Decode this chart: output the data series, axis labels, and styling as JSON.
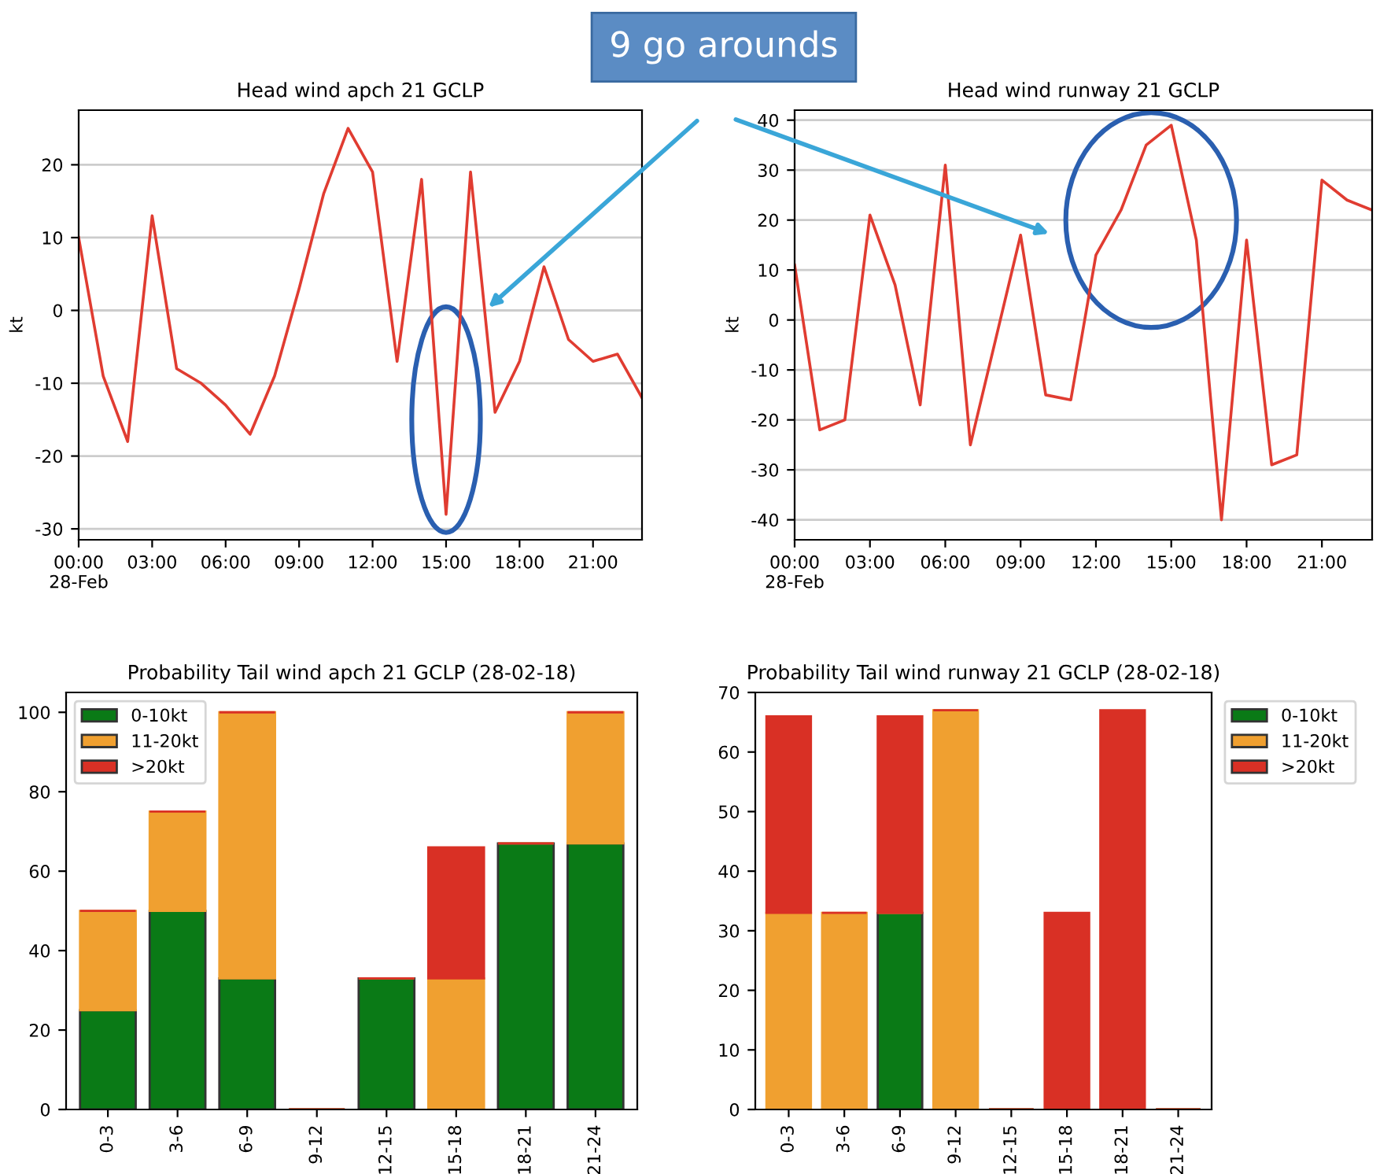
{
  "chart_data": [
    {
      "type": "line",
      "title": "Head wind apch 21 GCLP",
      "ylabel": "kt",
      "annotations": [
        "9 go arounds"
      ],
      "grid": "y",
      "xlim": [
        0,
        23
      ],
      "ylim": [
        -31.5,
        27.5
      ],
      "xticks": [
        {
          "value": 0,
          "label": "00:00\n28-Feb"
        },
        {
          "value": 3,
          "label": "03:00"
        },
        {
          "value": 6,
          "label": "06:00"
        },
        {
          "value": 9,
          "label": "09:00"
        },
        {
          "value": 12,
          "label": "12:00"
        },
        {
          "value": 15,
          "label": "15:00"
        },
        {
          "value": 18,
          "label": "18:00"
        },
        {
          "value": 21,
          "label": "21:00"
        }
      ],
      "yticks": [
        -30,
        -20,
        -10,
        0,
        10,
        20
      ],
      "x": [
        0,
        1,
        2,
        3,
        4,
        5,
        6,
        7,
        8,
        9,
        10,
        11,
        12,
        13,
        14,
        15,
        16,
        17,
        18,
        19,
        20,
        21,
        22,
        23
      ],
      "series": [
        {
          "color": "#e03c31",
          "values": [
            10,
            -9,
            -18,
            13,
            -8,
            -10,
            -13,
            -17,
            -9,
            3,
            16,
            25,
            19,
            -7,
            18,
            -28,
            19,
            -14,
            -7,
            6,
            -4,
            -7,
            -6,
            -12
          ]
        }
      ]
    },
    {
      "type": "line",
      "title": "Head wind runway 21 GCLP",
      "ylabel": "kt",
      "grid": "y",
      "xlim": [
        0,
        23
      ],
      "ylim": [
        -44,
        42
      ],
      "xticks": [
        {
          "value": 0,
          "label": "00:00\n28-Feb"
        },
        {
          "value": 3,
          "label": "03:00"
        },
        {
          "value": 6,
          "label": "06:00"
        },
        {
          "value": 9,
          "label": "09:00"
        },
        {
          "value": 12,
          "label": "12:00"
        },
        {
          "value": 15,
          "label": "15:00"
        },
        {
          "value": 18,
          "label": "18:00"
        },
        {
          "value": 21,
          "label": "21:00"
        }
      ],
      "yticks": [
        -40,
        -30,
        -20,
        -10,
        0,
        10,
        20,
        30,
        40
      ],
      "x": [
        0,
        1,
        2,
        3,
        4,
        5,
        6,
        7,
        8,
        9,
        10,
        11,
        12,
        13,
        14,
        15,
        16,
        17,
        18,
        19,
        20,
        21,
        22,
        23
      ],
      "series": [
        {
          "color": "#e03c31",
          "values": [
            11,
            -22,
            -20,
            21,
            7,
            -17,
            31,
            -25,
            -4,
            17,
            -15,
            -16,
            13,
            22,
            35,
            39,
            16,
            -40,
            16,
            -29,
            -27,
            28,
            24,
            22
          ]
        }
      ]
    },
    {
      "type": "bar",
      "stacked": true,
      "title": "Probability Tail wind apch 21 GCLP (28-02-18)",
      "legend": "top left",
      "ylim": [
        0,
        105
      ],
      "yticks": [
        0,
        20,
        40,
        60,
        80,
        100
      ],
      "categories": [
        "0-3",
        "3-6",
        "6-9",
        "9-12",
        "12-15",
        "15-18",
        "18-21",
        "21-24"
      ],
      "series": [
        {
          "name": "0-10kt",
          "color": "#0a7a16",
          "values": [
            25,
            50,
            33,
            0,
            33,
            0,
            67,
            67
          ]
        },
        {
          "name": "11-20kt",
          "color": "#f0a030",
          "values": [
            25,
            25,
            67,
            0,
            0,
            33,
            0,
            33
          ]
        },
        {
          "name": ">20kt",
          "color": "#d93025",
          "values": [
            0,
            0,
            0,
            0,
            0,
            33,
            0,
            0
          ]
        }
      ]
    },
    {
      "type": "bar",
      "stacked": true,
      "title": "Probability Tail wind runway 21 GCLP (28-02-18)",
      "legend": "top right",
      "ylim": [
        0,
        70
      ],
      "yticks": [
        0,
        10,
        20,
        30,
        40,
        50,
        60,
        70
      ],
      "categories": [
        "0-3",
        "3-6",
        "6-9",
        "9-12",
        "12-15",
        "15-18",
        "18-21",
        "21-24"
      ],
      "series": [
        {
          "name": "0-10kt",
          "color": "#0a7a16",
          "values": [
            0,
            0,
            33,
            0,
            0,
            0,
            0,
            0
          ]
        },
        {
          "name": "11-20kt",
          "color": "#f0a030",
          "values": [
            33,
            33,
            0,
            67,
            0,
            0,
            0,
            0
          ]
        },
        {
          "name": ">20kt",
          "color": "#d93025",
          "values": [
            33,
            0,
            33,
            0,
            0,
            33,
            67,
            0
          ]
        }
      ]
    }
  ]
}
